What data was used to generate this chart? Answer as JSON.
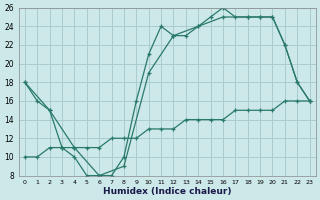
{
  "xlabel": "Humidex (Indice chaleur)",
  "bg_color": "#cce8e8",
  "grid_color": "#aacccc",
  "line_color": "#2a7a6a",
  "xlim": [
    -0.5,
    23.5
  ],
  "ylim": [
    8,
    26
  ],
  "xticks": [
    0,
    1,
    2,
    3,
    4,
    5,
    6,
    7,
    8,
    9,
    10,
    11,
    12,
    13,
    14,
    15,
    16,
    17,
    18,
    19,
    20,
    21,
    22,
    23
  ],
  "yticks": [
    8,
    10,
    12,
    14,
    16,
    18,
    20,
    22,
    24,
    26
  ],
  "line1_x": [
    0,
    1,
    2,
    3,
    4,
    5,
    6,
    7,
    8,
    9,
    10,
    11,
    12,
    13,
    14,
    15,
    16,
    17,
    18,
    19,
    20,
    21,
    22,
    23
  ],
  "line1_y": [
    18,
    16,
    15,
    11,
    10,
    8,
    8,
    8,
    10,
    16,
    21,
    24,
    23,
    23,
    24,
    25,
    26,
    25,
    25,
    25,
    25,
    22,
    18,
    16
  ],
  "line2_x": [
    0,
    2,
    4,
    6,
    8,
    10,
    12,
    14,
    16,
    18,
    19,
    20,
    21,
    22,
    23
  ],
  "line2_y": [
    18,
    15,
    11,
    8,
    9,
    19,
    23,
    24,
    25,
    25,
    25,
    25,
    22,
    18,
    16
  ],
  "line3_x": [
    0,
    1,
    2,
    3,
    4,
    5,
    6,
    7,
    8,
    9,
    10,
    11,
    12,
    13,
    14,
    15,
    16,
    17,
    18,
    19,
    20,
    21,
    22,
    23
  ],
  "line3_y": [
    10,
    10,
    11,
    11,
    11,
    11,
    11,
    12,
    12,
    12,
    13,
    13,
    13,
    14,
    14,
    14,
    14,
    15,
    15,
    15,
    15,
    16,
    16,
    16
  ]
}
